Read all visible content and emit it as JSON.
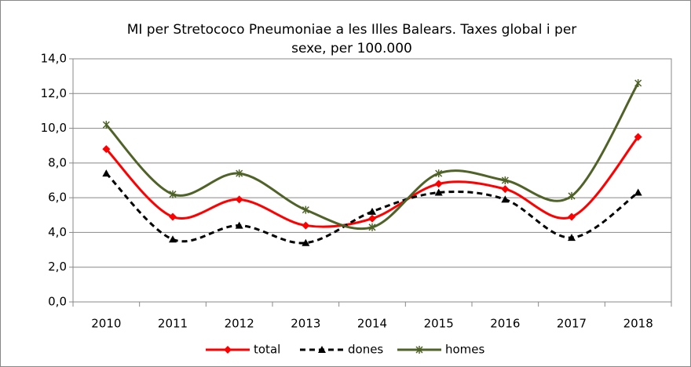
{
  "chart_data": {
    "type": "line",
    "title": [
      "MI per Stretococo Pneumoniae  a les Illes Balears.  Taxes global i per",
      "sexe, per 100.000"
    ],
    "categories": [
      "2010",
      "2011",
      "2012",
      "2013",
      "2014",
      "2015",
      "2016",
      "2017",
      "2018"
    ],
    "series": [
      {
        "name": "total",
        "color": "#ff0000",
        "dash": false,
        "marker": "diamond",
        "values": [
          8.8,
          4.9,
          5.9,
          4.4,
          4.8,
          6.8,
          6.5,
          4.9,
          9.5
        ]
      },
      {
        "name": "dones",
        "color": "#000000",
        "dash": true,
        "marker": "triangle",
        "values": [
          7.4,
          3.6,
          4.4,
          3.4,
          5.2,
          6.3,
          5.9,
          3.7,
          6.3
        ]
      },
      {
        "name": "homes",
        "color": "#4f6228",
        "dash": false,
        "marker": "star",
        "values": [
          10.2,
          6.2,
          7.4,
          5.3,
          4.3,
          7.4,
          7.0,
          6.1,
          12.6
        ]
      }
    ],
    "smooth": true,
    "ylim": [
      0,
      14
    ],
    "yticks": [
      {
        "value": 0,
        "label": "0,0"
      },
      {
        "value": 2,
        "label": "2,0"
      },
      {
        "value": 4,
        "label": "4,0"
      },
      {
        "value": 6,
        "label": "6,0"
      },
      {
        "value": 8,
        "label": "8,0"
      },
      {
        "value": 10,
        "label": "10,0"
      },
      {
        "value": 12,
        "label": "12,0"
      },
      {
        "value": 14,
        "label": "14,0"
      }
    ],
    "grid": true,
    "legend": "bottom"
  }
}
